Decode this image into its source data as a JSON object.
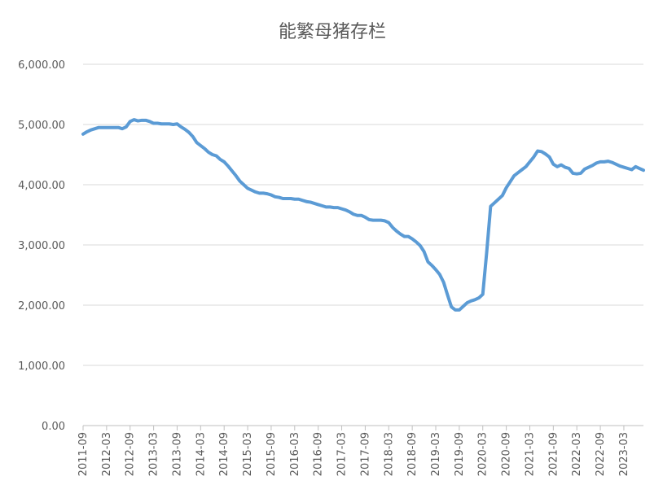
{
  "chart_data": {
    "type": "line",
    "title": "能繁母猪存栏",
    "categories": [
      "2011-09",
      null,
      null,
      null,
      null,
      null,
      "2012-03",
      null,
      null,
      null,
      null,
      null,
      "2012-09",
      null,
      null,
      null,
      null,
      null,
      "2013-03",
      null,
      null,
      null,
      null,
      null,
      "2013-09",
      null,
      null,
      null,
      null,
      null,
      "2014-03",
      null,
      null,
      null,
      null,
      null,
      "2014-09",
      null,
      null,
      null,
      null,
      null,
      "2015-03",
      null,
      null,
      null,
      null,
      null,
      "2015-09",
      null,
      null,
      null,
      null,
      null,
      "2016-03",
      null,
      null,
      null,
      null,
      null,
      "2016-09",
      null,
      null,
      null,
      null,
      null,
      "2017-03",
      null,
      null,
      null,
      null,
      null,
      "2017-09",
      null,
      null,
      null,
      null,
      null,
      "2018-03",
      null,
      null,
      null,
      null,
      null,
      "2018-09",
      null,
      null,
      null,
      null,
      null,
      "2019-03",
      null,
      null,
      null,
      null,
      null,
      "2019-09",
      null,
      null,
      null,
      null,
      null,
      "2020-03",
      null,
      null,
      null,
      null,
      null,
      "2020-09",
      null,
      null,
      null,
      null,
      null,
      "2021-03",
      null,
      null,
      null,
      null,
      null,
      "2021-09",
      null,
      null,
      null,
      null,
      null,
      "2022-03",
      null,
      null,
      null,
      null,
      null,
      "2022-09",
      null,
      null,
      null,
      null,
      null,
      "2023-03",
      null,
      null,
      null,
      null,
      null
    ],
    "values": [
      4840,
      4880,
      4910,
      4930,
      4950,
      4950,
      4950,
      4950,
      4950,
      4950,
      4930,
      4960,
      5050,
      5080,
      5060,
      5070,
      5070,
      5050,
      5020,
      5020,
      5010,
      5010,
      5010,
      5000,
      5010,
      4960,
      4920,
      4870,
      4800,
      4700,
      4650,
      4600,
      4540,
      4500,
      4480,
      4420,
      4380,
      4310,
      4230,
      4150,
      4060,
      4000,
      3940,
      3910,
      3880,
      3860,
      3860,
      3850,
      3830,
      3800,
      3790,
      3770,
      3770,
      3770,
      3760,
      3760,
      3740,
      3720,
      3710,
      3690,
      3670,
      3650,
      3630,
      3630,
      3620,
      3620,
      3600,
      3580,
      3550,
      3510,
      3490,
      3490,
      3460,
      3420,
      3410,
      3410,
      3410,
      3400,
      3370,
      3290,
      3230,
      3180,
      3140,
      3140,
      3100,
      3050,
      2990,
      2890,
      2720,
      2660,
      2590,
      2510,
      2380,
      2170,
      1970,
      1920,
      1920,
      1980,
      2040,
      2070,
      2090,
      2120,
      2180,
      2880,
      3640,
      3700,
      3760,
      3820,
      3950,
      4050,
      4150,
      4200,
      4250,
      4300,
      4380,
      4460,
      4560,
      4550,
      4510,
      4460,
      4340,
      4300,
      4330,
      4290,
      4270,
      4190,
      4180,
      4190,
      4260,
      4290,
      4320,
      4360,
      4380,
      4380,
      4390,
      4370,
      4340,
      4310,
      4290,
      4270,
      4250,
      4300,
      4270,
      4240
    ],
    "color": "#5b9bd5",
    "ylim": [
      0,
      6000
    ],
    "yticks": [
      {
        "value": 0,
        "label": "0.00"
      },
      {
        "value": 1000,
        "label": "1,000.00"
      },
      {
        "value": 2000,
        "label": "2,000.00"
      },
      {
        "value": 3000,
        "label": "3,000.00"
      },
      {
        "value": 4000,
        "label": "4,000.00"
      },
      {
        "value": 5000,
        "label": "5,000.00"
      },
      {
        "value": 6000,
        "label": "6,000.00"
      }
    ],
    "grid": true
  }
}
